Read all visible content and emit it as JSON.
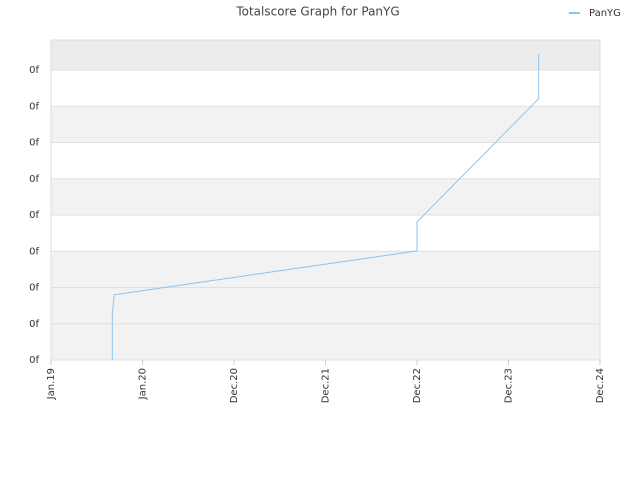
{
  "chart_data": {
    "type": "line",
    "title": "Totalscore Graph for PanYG",
    "x": [
      0.67,
      0.67,
      0.69,
      4.0,
      4.0,
      5.33,
      5.33
    ],
    "series": [
      {
        "name": "PanYG",
        "color": "#8ec3ea",
        "values": [
          0,
          1.24,
          1.8,
          3.01,
          3.81,
          7.21,
          8.43
        ]
      }
    ],
    "xlim": [
      0,
      6
    ],
    "xticks": [
      {
        "value": 0,
        "label": "Jan.19"
      },
      {
        "value": 1,
        "label": "Jan.20"
      },
      {
        "value": 2,
        "label": "Dec.20"
      },
      {
        "value": 3,
        "label": "Dec.21"
      },
      {
        "value": 4,
        "label": "Dec.22"
      },
      {
        "value": 5,
        "label": "Dec.23"
      },
      {
        "value": 6,
        "label": "Dec.24"
      }
    ],
    "ylim": [
      0,
      8.83
    ],
    "yticks": [
      {
        "value": 0,
        "label": "0f"
      },
      {
        "value": 1,
        "label": "0f"
      },
      {
        "value": 2,
        "label": "0f"
      },
      {
        "value": 3,
        "label": "0f"
      },
      {
        "value": 4,
        "label": "0f"
      },
      {
        "value": 5,
        "label": "0f"
      },
      {
        "value": 6,
        "label": "0f"
      },
      {
        "value": 7,
        "label": "0f"
      },
      {
        "value": 8,
        "label": "0f"
      }
    ],
    "grid": true,
    "legend": "top-right"
  }
}
